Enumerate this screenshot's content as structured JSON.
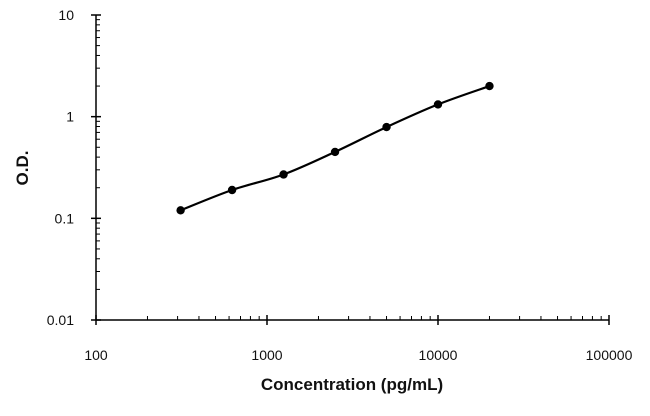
{
  "chart_data": {
    "type": "line",
    "title": "",
    "xlabel": "Concentration (pg/mL)",
    "ylabel": "O.D.",
    "x_scale": "log",
    "y_scale": "log",
    "xlim": [
      100,
      100000
    ],
    "ylim": [
      0.01,
      10
    ],
    "x_ticks": [
      100,
      1000,
      10000,
      100000
    ],
    "x_tick_labels": [
      "100",
      "1000",
      "10000",
      "100000"
    ],
    "y_ticks": [
      0.01,
      0.1,
      1,
      10
    ],
    "y_tick_labels": [
      "0.01",
      "0.1",
      "1",
      "10"
    ],
    "grid": false,
    "legend": "none",
    "series": [
      {
        "color": "#000000",
        "x": [
          312.5,
          625,
          1250,
          2500,
          5000,
          10000,
          20000
        ],
        "y": [
          0.12,
          0.19,
          0.27,
          0.45,
          0.79,
          1.32,
          2.0
        ]
      }
    ]
  }
}
